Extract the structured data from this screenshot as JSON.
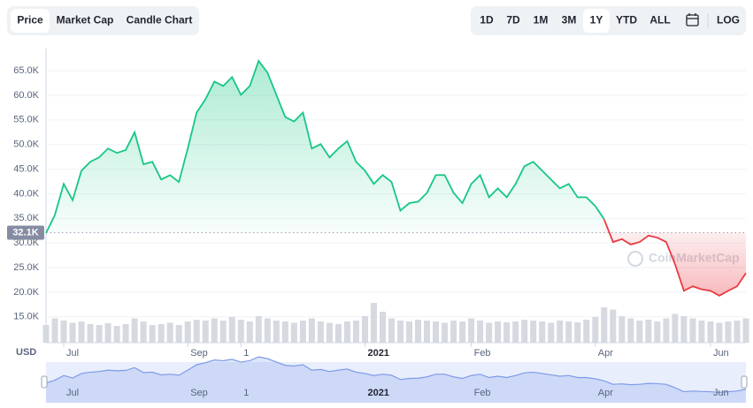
{
  "ui": {
    "tabs": [
      "Price",
      "Market Cap",
      "Candle Chart"
    ],
    "active_tab": 0,
    "ranges": [
      "1D",
      "7D",
      "1M",
      "3M",
      "1Y",
      "YTD",
      "ALL"
    ],
    "active_range": 4,
    "log": "LOG",
    "currency": "USD",
    "watermark": "CoinMarketCap"
  },
  "chart_data": {
    "type": "line",
    "categories": [
      null,
      null,
      "Jul",
      null,
      null,
      null,
      null,
      null,
      null,
      null,
      null,
      null,
      null,
      null,
      null,
      null,
      "Sep",
      null,
      null,
      null,
      null,
      null,
      "1",
      null,
      null,
      null,
      null,
      null,
      null,
      null,
      null,
      null,
      null,
      null,
      null,
      null,
      "2021",
      null,
      null,
      null,
      null,
      null,
      null,
      null,
      null,
      null,
      null,
      null,
      "Feb",
      null,
      null,
      null,
      null,
      null,
      null,
      null,
      null,
      null,
      null,
      null,
      null,
      null,
      "Apr",
      null,
      null,
      null,
      null,
      null,
      null,
      null,
      null,
      null,
      null,
      null,
      null,
      "Jun",
      null,
      null,
      null,
      null
    ],
    "series": [
      {
        "name": "Price",
        "values": [
          32000,
          35700,
          42000,
          38700,
          44700,
          46500,
          47400,
          49200,
          48300,
          48900,
          52500,
          46000,
          46500,
          42900,
          43800,
          42400,
          49200,
          56500,
          59200,
          62800,
          61900,
          63700,
          60100,
          61900,
          67000,
          64600,
          60100,
          55600,
          54700,
          56500,
          49200,
          50100,
          47400,
          49200,
          50700,
          46500,
          44700,
          42000,
          43800,
          42400,
          36600,
          38100,
          38400,
          40200,
          43800,
          43800,
          40200,
          38100,
          42000,
          43800,
          39300,
          41100,
          39300,
          42000,
          45600,
          46500,
          44700,
          42900,
          41100,
          42000,
          39300,
          39300,
          37500,
          34800,
          30200,
          30800,
          29700,
          30200,
          31500,
          31100,
          30200,
          25700,
          20300,
          21200,
          20600,
          20300,
          19300,
          20300,
          21200,
          23900
        ]
      },
      {
        "name": "Volume",
        "values": [
          40,
          55,
          50,
          45,
          48,
          42,
          40,
          44,
          38,
          42,
          55,
          48,
          40,
          42,
          45,
          40,
          48,
          52,
          50,
          55,
          50,
          58,
          52,
          48,
          60,
          55,
          50,
          48,
          45,
          50,
          55,
          48,
          45,
          42,
          48,
          50,
          60,
          90,
          70,
          55,
          50,
          48,
          52,
          50,
          48,
          45,
          50,
          48,
          55,
          50,
          45,
          48,
          46,
          48,
          52,
          50,
          48,
          45,
          50,
          48,
          46,
          52,
          58,
          80,
          75,
          60,
          55,
          50,
          52,
          48,
          55,
          65,
          60,
          55,
          50,
          48,
          45,
          48,
          50,
          55
        ]
      }
    ],
    "colors": {
      "up": "#16c784",
      "down": "#ea3943",
      "volume": "#d6d9df",
      "navigator": "#7d9be8"
    },
    "baseline": {
      "value": 32100,
      "label": "32.1K"
    },
    "ylim": [
      10300,
      69500
    ],
    "yticks": [
      {
        "value": 15000,
        "label": "15.0K"
      },
      {
        "value": 20000,
        "label": "20.0K"
      },
      {
        "value": 25000,
        "label": "25.0K"
      },
      {
        "value": 30000,
        "label": "30.0K"
      },
      {
        "value": 35000,
        "label": "35.0K"
      },
      {
        "value": 40000,
        "label": "40.0K"
      },
      {
        "value": 45000,
        "label": "45.0K"
      },
      {
        "value": 50000,
        "label": "50.0K"
      },
      {
        "value": 55000,
        "label": "55.0K"
      },
      {
        "value": 60000,
        "label": "60.0K"
      },
      {
        "value": 65000,
        "label": "65.0K"
      }
    ],
    "grid": true
  }
}
